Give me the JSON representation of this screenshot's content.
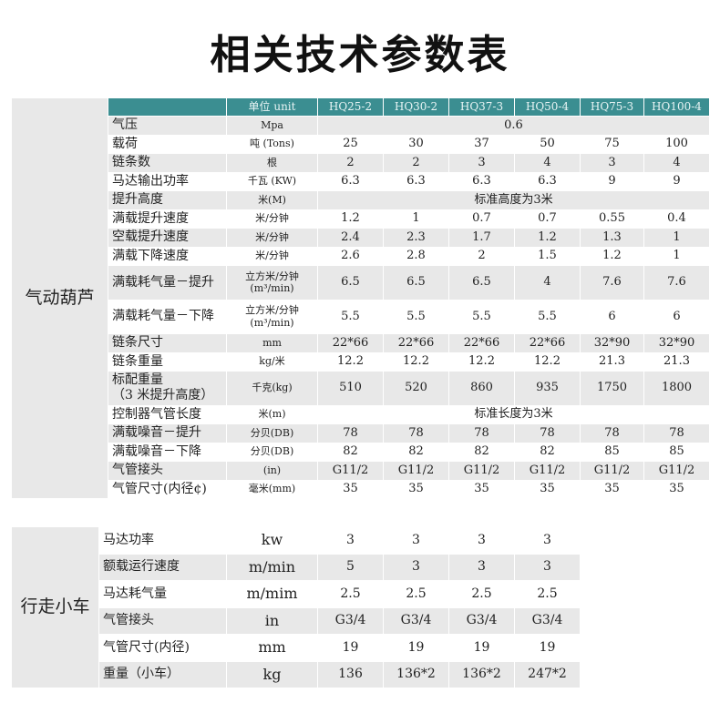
{
  "title": "相关技术参数表",
  "hoist_table": {
    "group": "气动葫芦",
    "header": [
      "单位 unit",
      "HQ25-2",
      "HQ30-2",
      "HQ37-3",
      "HQ50-4",
      "HQ75-3",
      "HQ100-4"
    ],
    "rows": [
      {
        "label": "气压",
        "unit": "Mpa",
        "values": [
          "0.6"
        ]
      },
      {
        "label": "载荷",
        "unit": "吨 (Tons)",
        "values": [
          "25",
          "30",
          "37",
          "50",
          "75",
          "100"
        ]
      },
      {
        "label": "链条数",
        "unit": "根",
        "values": [
          "2",
          "2",
          "3",
          "4",
          "3",
          "4"
        ]
      },
      {
        "label": "马达输出功率",
        "unit": "千瓦 (KW)",
        "values": [
          "6.3",
          "6.3",
          "6.3",
          "6.3",
          "9",
          "9"
        ]
      },
      {
        "label": "提升高度",
        "unit": "米(M)",
        "values": [
          "标准高度为3米"
        ]
      },
      {
        "label": "满载提升速度",
        "unit": "米/分钟",
        "values": [
          "1.2",
          "1",
          "0.7",
          "0.7",
          "0.55",
          "0.4"
        ]
      },
      {
        "label": "空载提升速度",
        "unit": "米/分钟",
        "values": [
          "2.4",
          "2.3",
          "1.7",
          "1.2",
          "1.3",
          "1"
        ]
      },
      {
        "label": "满载下降速度",
        "unit": "米/分钟",
        "values": [
          "2.6",
          "2.8",
          "2",
          "1.5",
          "1.2",
          "1"
        ]
      },
      {
        "label": "满载耗气量－提升",
        "unit": "立方米/分钟\n(m³/min)",
        "values": [
          "6.5",
          "6.5",
          "6.5",
          "4",
          "7.6",
          "7.6"
        ]
      },
      {
        "label": "满载耗气量－下降",
        "unit": "立方米/分钟\n(m³/min)",
        "values": [
          "5.5",
          "5.5",
          "5.5",
          "5.5",
          "6",
          "6"
        ]
      },
      {
        "label": "链条尺寸",
        "unit": "mm",
        "values": [
          "22*66",
          "22*66",
          "22*66",
          "22*66",
          "32*90",
          "32*90"
        ]
      },
      {
        "label": "链条重量",
        "unit": "kg/米",
        "values": [
          "12.2",
          "12.2",
          "12.2",
          "12.2",
          "21.3",
          "21.3"
        ]
      },
      {
        "label": "标配重量\n（3 米提升高度）",
        "unit": "千克(kg)",
        "values": [
          "510",
          "520",
          "860",
          "935",
          "1750",
          "1800"
        ]
      },
      {
        "label": "控制器气管长度",
        "unit": "米(m)",
        "values": [
          "标准长度为3米"
        ]
      },
      {
        "label": "满载噪音－提升",
        "unit": "分贝(DB)",
        "values": [
          "78",
          "78",
          "78",
          "78",
          "78",
          "78"
        ]
      },
      {
        "label": "满载噪音－下降",
        "unit": "分贝(DB)",
        "values": [
          "82",
          "82",
          "82",
          "82",
          "85",
          "85"
        ]
      },
      {
        "label": "气管接头",
        "unit": "(in)",
        "values": [
          "G11/2",
          "G11/2",
          "G11/2",
          "G11/2",
          "G11/2",
          "G11/2"
        ]
      },
      {
        "label": "气管尺寸(内径¢)",
        "unit": "毫米(mm)",
        "values": [
          "35",
          "35",
          "35",
          "35",
          "35",
          "35"
        ]
      }
    ]
  },
  "trolley_table": {
    "group": "行走小车",
    "rows": [
      {
        "label": "马达功率",
        "unit": "kw",
        "values": [
          "3",
          "3",
          "3",
          "3"
        ]
      },
      {
        "label": "额载运行速度",
        "unit": "m/min",
        "values": [
          "5",
          "3",
          "3",
          "3"
        ]
      },
      {
        "label": "马达耗气量",
        "unit": "m/mim",
        "values": [
          "2.5",
          "2.5",
          "2.5",
          "2.5"
        ]
      },
      {
        "label": "气管接头",
        "unit": "in",
        "values": [
          "G3/4",
          "G3/4",
          "G3/4",
          "G3/4"
        ]
      },
      {
        "label": "气管尺寸(内径)",
        "unit": "mm",
        "values": [
          "19",
          "19",
          "19",
          "19"
        ]
      },
      {
        "label": "重量（小车）",
        "unit": "kg",
        "values": [
          "136",
          "136*2",
          "136*2",
          "247*2"
        ]
      }
    ]
  }
}
